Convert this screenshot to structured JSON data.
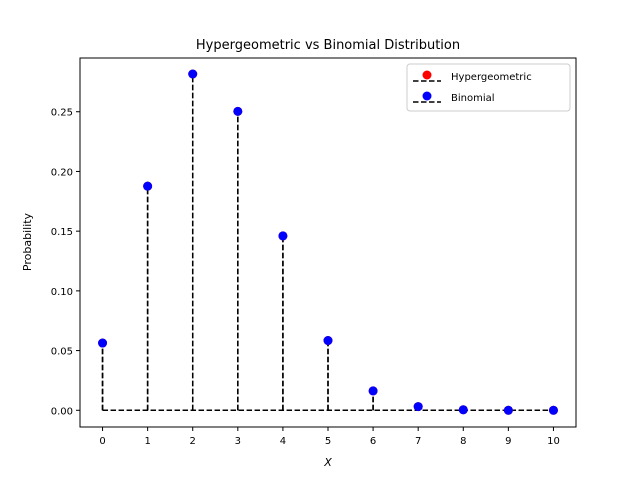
{
  "chart_data": {
    "type": "scatter",
    "title": "Hypergeometric vs Binomial Distribution",
    "xlabel": "X",
    "ylabel": "Probability",
    "xlim": [
      -0.5,
      10.5
    ],
    "ylim": [
      -0.014,
      0.295
    ],
    "x": [
      0,
      1,
      2,
      3,
      4,
      5,
      6,
      7,
      8,
      9,
      10
    ],
    "x_ticks": [
      "0",
      "1",
      "2",
      "3",
      "4",
      "5",
      "6",
      "7",
      "8",
      "9",
      "10"
    ],
    "y_ticks": [
      0.0,
      0.05,
      0.1,
      0.15,
      0.2,
      0.25
    ],
    "y_tick_labels": [
      "0.00",
      "0.05",
      "0.10",
      "0.15",
      "0.20",
      "0.25"
    ],
    "grid": false,
    "legend_position": "top-right",
    "series": [
      {
        "name": "Hypergeometric",
        "color": "#ff0000",
        "style": "stem-dashed",
        "values": [
          0.0563,
          0.1877,
          0.2816,
          0.2503,
          0.146,
          0.0584,
          0.0162,
          0.0031,
          0.0004,
          0.0,
          0.0
        ]
      },
      {
        "name": "Binomial",
        "color": "#0000ff",
        "style": "stem-dashed",
        "values": [
          0.0563,
          0.1877,
          0.2816,
          0.2503,
          0.146,
          0.0584,
          0.0162,
          0.0031,
          0.0004,
          0.0,
          0.0
        ]
      }
    ]
  }
}
